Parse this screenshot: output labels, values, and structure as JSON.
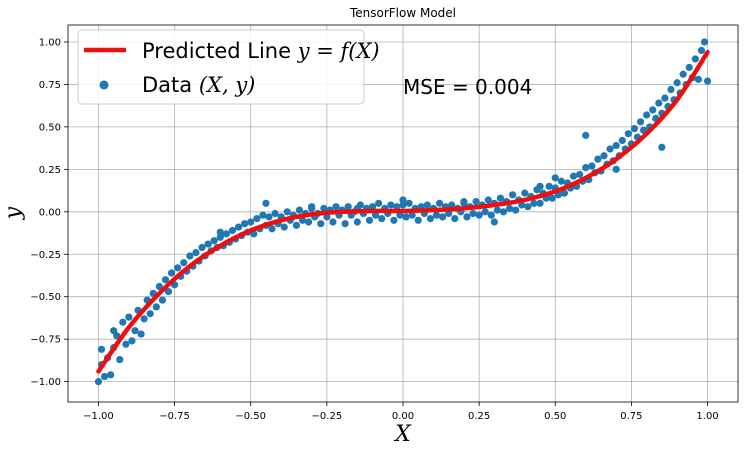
{
  "chart_data": {
    "type": "scatter",
    "title": "TensorFlow Model",
    "xlabel": "X",
    "ylabel": "y",
    "xlim": [
      -1.1,
      1.1
    ],
    "ylim": [
      -1.12,
      1.1
    ],
    "x_ticks": [
      -1.0,
      -0.75,
      -0.5,
      -0.25,
      0.0,
      0.25,
      0.5,
      0.75,
      1.0
    ],
    "x_tick_labels": [
      "−1.00",
      "−0.75",
      "−0.50",
      "−0.25",
      "0.00",
      "0.25",
      "0.50",
      "0.75",
      "1.00"
    ],
    "y_ticks": [
      -1.0,
      -0.75,
      -0.5,
      -0.25,
      0.0,
      0.25,
      0.5,
      0.75,
      1.0
    ],
    "y_tick_labels": [
      "−1.00",
      "−0.75",
      "−0.50",
      "−0.25",
      "0.00",
      "0.25",
      "0.50",
      "0.75",
      "1.00"
    ],
    "grid": true,
    "legend_position": "top-left",
    "annotation": "MSE = 0.004",
    "series": [
      {
        "name": "Predicted Line y = f(X)",
        "legend_prefix": "Predicted Line ",
        "legend_math": "y = f(X)",
        "kind": "line",
        "color": "#ee0e0e",
        "x": [
          -1.0,
          -0.9,
          -0.8,
          -0.7,
          -0.6,
          -0.5,
          -0.4,
          -0.3,
          -0.2,
          -0.1,
          0.0,
          0.1,
          0.2,
          0.3,
          0.4,
          0.5,
          0.6,
          0.7,
          0.8,
          0.9,
          1.0
        ],
        "y": [
          -0.94,
          -0.68,
          -0.48,
          -0.32,
          -0.2,
          -0.11,
          -0.05,
          -0.015,
          0.0,
          0.005,
          0.005,
          0.01,
          0.02,
          0.04,
          0.07,
          0.12,
          0.2,
          0.31,
          0.46,
          0.66,
          0.94
        ]
      },
      {
        "name": "Data (X, y)",
        "legend_prefix": "Data ",
        "legend_math": "(X, y)",
        "kind": "scatter",
        "color": "#1f77b4",
        "points": [
          [
            -1.0,
            -1.0
          ],
          [
            -0.99,
            -0.9
          ],
          [
            -0.99,
            -0.81
          ],
          [
            -0.98,
            -0.97
          ],
          [
            -0.97,
            -0.86
          ],
          [
            -0.96,
            -0.96
          ],
          [
            -0.95,
            -0.8
          ],
          [
            -0.94,
            -0.73
          ],
          [
            -0.93,
            -0.87
          ],
          [
            -0.92,
            -0.65
          ],
          [
            -0.91,
            -0.78
          ],
          [
            -0.9,
            -0.62
          ],
          [
            -0.89,
            -0.76
          ],
          [
            -0.88,
            -0.7
          ],
          [
            -0.87,
            -0.58
          ],
          [
            -0.86,
            -0.72
          ],
          [
            -0.85,
            -0.63
          ],
          [
            -0.84,
            -0.52
          ],
          [
            -0.83,
            -0.6
          ],
          [
            -0.82,
            -0.48
          ],
          [
            -0.81,
            -0.56
          ],
          [
            -0.8,
            -0.44
          ],
          [
            -0.79,
            -0.52
          ],
          [
            -0.78,
            -0.4
          ],
          [
            -0.77,
            -0.47
          ],
          [
            -0.76,
            -0.36
          ],
          [
            -0.75,
            -0.43
          ],
          [
            -0.74,
            -0.33
          ],
          [
            -0.73,
            -0.38
          ],
          [
            -0.72,
            -0.3
          ],
          [
            -0.71,
            -0.35
          ],
          [
            -0.7,
            -0.26
          ],
          [
            -0.69,
            -0.32
          ],
          [
            -0.68,
            -0.24
          ],
          [
            -0.67,
            -0.29
          ],
          [
            -0.66,
            -0.21
          ],
          [
            -0.65,
            -0.26
          ],
          [
            -0.64,
            -0.19
          ],
          [
            -0.63,
            -0.23
          ],
          [
            -0.62,
            -0.17
          ],
          [
            -0.61,
            -0.21
          ],
          [
            -0.6,
            -0.15
          ],
          [
            -0.59,
            -0.2
          ],
          [
            -0.58,
            -0.13
          ],
          [
            -0.57,
            -0.18
          ],
          [
            -0.56,
            -0.11
          ],
          [
            -0.55,
            -0.16
          ],
          [
            -0.54,
            -0.09
          ],
          [
            -0.53,
            -0.14
          ],
          [
            -0.52,
            -0.07
          ],
          [
            -0.51,
            -0.12
          ],
          [
            -0.5,
            -0.06
          ],
          [
            -0.49,
            -0.13
          ],
          [
            -0.48,
            -0.04
          ],
          [
            -0.47,
            -0.1
          ],
          [
            -0.46,
            -0.02
          ],
          [
            -0.45,
            -0.08
          ],
          [
            -0.44,
            -0.03
          ],
          [
            -0.43,
            -0.1
          ],
          [
            -0.42,
            -0.01
          ],
          [
            -0.41,
            -0.07
          ],
          [
            -0.4,
            -0.03
          ],
          [
            -0.39,
            -0.09
          ],
          [
            -0.38,
            0.0
          ],
          [
            -0.37,
            -0.05
          ],
          [
            -0.36,
            -0.02
          ],
          [
            -0.35,
            -0.08
          ],
          [
            -0.34,
            0.01
          ],
          [
            -0.33,
            -0.05
          ],
          [
            -0.32,
            -0.01
          ],
          [
            -0.31,
            -0.06
          ],
          [
            -0.3,
            0.02
          ],
          [
            -0.29,
            -0.03
          ],
          [
            -0.28,
            -0.01
          ],
          [
            -0.27,
            -0.07
          ],
          [
            -0.26,
            0.02
          ],
          [
            -0.25,
            -0.03
          ],
          [
            -0.24,
            0.01
          ],
          [
            -0.23,
            -0.06
          ],
          [
            -0.22,
            0.03
          ],
          [
            -0.21,
            -0.02
          ],
          [
            -0.2,
            0.01
          ],
          [
            -0.19,
            -0.07
          ],
          [
            -0.18,
            0.03
          ],
          [
            -0.17,
            -0.02
          ],
          [
            -0.16,
            0.0
          ],
          [
            -0.15,
            -0.06
          ],
          [
            -0.14,
            0.04
          ],
          [
            -0.13,
            -0.01
          ],
          [
            -0.12,
            0.02
          ],
          [
            -0.11,
            -0.05
          ],
          [
            -0.1,
            0.03
          ],
          [
            -0.09,
            -0.02
          ],
          [
            -0.08,
            0.05
          ],
          [
            -0.07,
            -0.04
          ],
          [
            -0.06,
            0.02
          ],
          [
            -0.05,
            -0.01
          ],
          [
            -0.04,
            0.04
          ],
          [
            -0.03,
            -0.05
          ],
          [
            -0.02,
            0.03
          ],
          [
            -0.01,
            -0.02
          ],
          [
            0.0,
            0.04
          ],
          [
            0.01,
            -0.03
          ],
          [
            0.02,
            0.05
          ],
          [
            0.03,
            -0.02
          ],
          [
            0.04,
            0.02
          ],
          [
            0.05,
            -0.05
          ],
          [
            0.06,
            0.03
          ],
          [
            0.07,
            -0.01
          ],
          [
            0.08,
            0.04
          ],
          [
            0.09,
            -0.04
          ],
          [
            0.1,
            0.02
          ],
          [
            0.11,
            -0.02
          ],
          [
            0.12,
            0.05
          ],
          [
            0.13,
            -0.03
          ],
          [
            0.14,
            0.03
          ],
          [
            0.15,
            -0.01
          ],
          [
            0.16,
            0.04
          ],
          [
            0.17,
            -0.04
          ],
          [
            0.18,
            0.02
          ],
          [
            0.19,
            0.0
          ],
          [
            0.2,
            0.05
          ],
          [
            0.21,
            -0.03
          ],
          [
            0.22,
            0.03
          ],
          [
            0.23,
            -0.01
          ],
          [
            0.24,
            0.06
          ],
          [
            0.25,
            -0.02
          ],
          [
            0.26,
            0.04
          ],
          [
            0.27,
            0.0
          ],
          [
            0.28,
            0.07
          ],
          [
            0.29,
            -0.02
          ],
          [
            0.3,
            0.05
          ],
          [
            0.31,
            0.01
          ],
          [
            0.32,
            0.08
          ],
          [
            0.33,
            0.0
          ],
          [
            0.34,
            0.06
          ],
          [
            0.35,
            0.02
          ],
          [
            0.36,
            0.1
          ],
          [
            0.37,
            0.01
          ],
          [
            0.38,
            0.07
          ],
          [
            0.39,
            0.04
          ],
          [
            0.4,
            0.11
          ],
          [
            0.41,
            0.03
          ],
          [
            0.42,
            0.09
          ],
          [
            0.43,
            0.05
          ],
          [
            0.44,
            0.13
          ],
          [
            0.45,
            0.05
          ],
          [
            0.46,
            0.11
          ],
          [
            0.47,
            0.08
          ],
          [
            0.48,
            0.15
          ],
          [
            0.49,
            0.08
          ],
          [
            0.5,
            0.14
          ],
          [
            0.51,
            0.1
          ],
          [
            0.52,
            0.18
          ],
          [
            0.53,
            0.11
          ],
          [
            0.54,
            0.17
          ],
          [
            0.55,
            0.14
          ],
          [
            0.56,
            0.21
          ],
          [
            0.57,
            0.15
          ],
          [
            0.58,
            0.22
          ],
          [
            0.59,
            0.18
          ],
          [
            0.6,
            0.26
          ],
          [
            0.61,
            0.19
          ],
          [
            0.62,
            0.27
          ],
          [
            0.63,
            0.23
          ],
          [
            0.64,
            0.31
          ],
          [
            0.65,
            0.24
          ],
          [
            0.66,
            0.33
          ],
          [
            0.67,
            0.28
          ],
          [
            0.68,
            0.37
          ],
          [
            0.69,
            0.3
          ],
          [
            0.7,
            0.39
          ],
          [
            0.71,
            0.33
          ],
          [
            0.72,
            0.42
          ],
          [
            0.73,
            0.37
          ],
          [
            0.74,
            0.46
          ],
          [
            0.75,
            0.4
          ],
          [
            0.76,
            0.49
          ],
          [
            0.77,
            0.44
          ],
          [
            0.78,
            0.53
          ],
          [
            0.79,
            0.48
          ],
          [
            0.8,
            0.57
          ],
          [
            0.81,
            0.5
          ],
          [
            0.82,
            0.6
          ],
          [
            0.83,
            0.55
          ],
          [
            0.84,
            0.64
          ],
          [
            0.85,
            0.58
          ],
          [
            0.86,
            0.67
          ],
          [
            0.87,
            0.62
          ],
          [
            0.88,
            0.72
          ],
          [
            0.89,
            0.66
          ],
          [
            0.9,
            0.76
          ],
          [
            0.91,
            0.7
          ],
          [
            0.92,
            0.81
          ],
          [
            0.93,
            0.75
          ],
          [
            0.94,
            0.85
          ],
          [
            0.95,
            0.79
          ],
          [
            0.96,
            0.9
          ],
          [
            0.97,
            0.78
          ],
          [
            0.98,
            0.95
          ],
          [
            0.99,
            1.0
          ],
          [
            1.0,
            0.77
          ],
          [
            0.5,
            0.2
          ],
          [
            0.6,
            0.45
          ],
          [
            -0.3,
            0.03
          ],
          [
            0.0,
            0.07
          ],
          [
            0.2,
            0.06
          ],
          [
            0.45,
            0.15
          ],
          [
            -0.95,
            -0.7
          ],
          [
            0.85,
            0.38
          ],
          [
            -0.15,
            0.02
          ],
          [
            0.7,
            0.25
          ],
          [
            -0.6,
            -0.12
          ],
          [
            0.3,
            -0.06
          ],
          [
            -0.45,
            0.05
          ]
        ]
      }
    ]
  }
}
